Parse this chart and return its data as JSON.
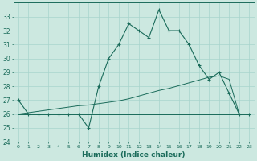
{
  "xlabel": "Humidex (Indice chaleur)",
  "bg_color": "#cce8e0",
  "line_color": "#1a6b5a",
  "grid_color": "#a8d4cc",
  "x": [
    0,
    1,
    2,
    3,
    4,
    5,
    6,
    7,
    8,
    9,
    10,
    11,
    12,
    13,
    14,
    15,
    16,
    17,
    18,
    19,
    20,
    21,
    22,
    23
  ],
  "humidex": [
    27,
    26,
    26,
    26,
    26,
    26,
    26,
    25,
    28,
    30,
    31,
    32.5,
    32,
    31.5,
    33.5,
    32,
    32,
    31,
    29.5,
    28.5,
    29,
    27.5,
    26,
    26
  ],
  "flat_line": [
    26,
    26,
    26,
    26,
    26,
    26,
    26,
    26,
    26,
    26,
    26,
    26,
    26,
    26,
    26,
    26,
    26,
    26,
    26,
    26,
    26,
    26,
    26,
    26
  ],
  "trend": [
    26.0,
    26.1,
    26.2,
    26.3,
    26.4,
    26.5,
    26.6,
    26.65,
    26.75,
    26.85,
    26.95,
    27.1,
    27.3,
    27.5,
    27.7,
    27.85,
    28.05,
    28.25,
    28.45,
    28.65,
    28.75,
    28.5,
    26.0,
    26.0
  ],
  "ylim": [
    24,
    34
  ],
  "yticks": [
    24,
    25,
    26,
    27,
    28,
    29,
    30,
    31,
    32,
    33
  ],
  "xlim": [
    -0.5,
    23.5
  ]
}
